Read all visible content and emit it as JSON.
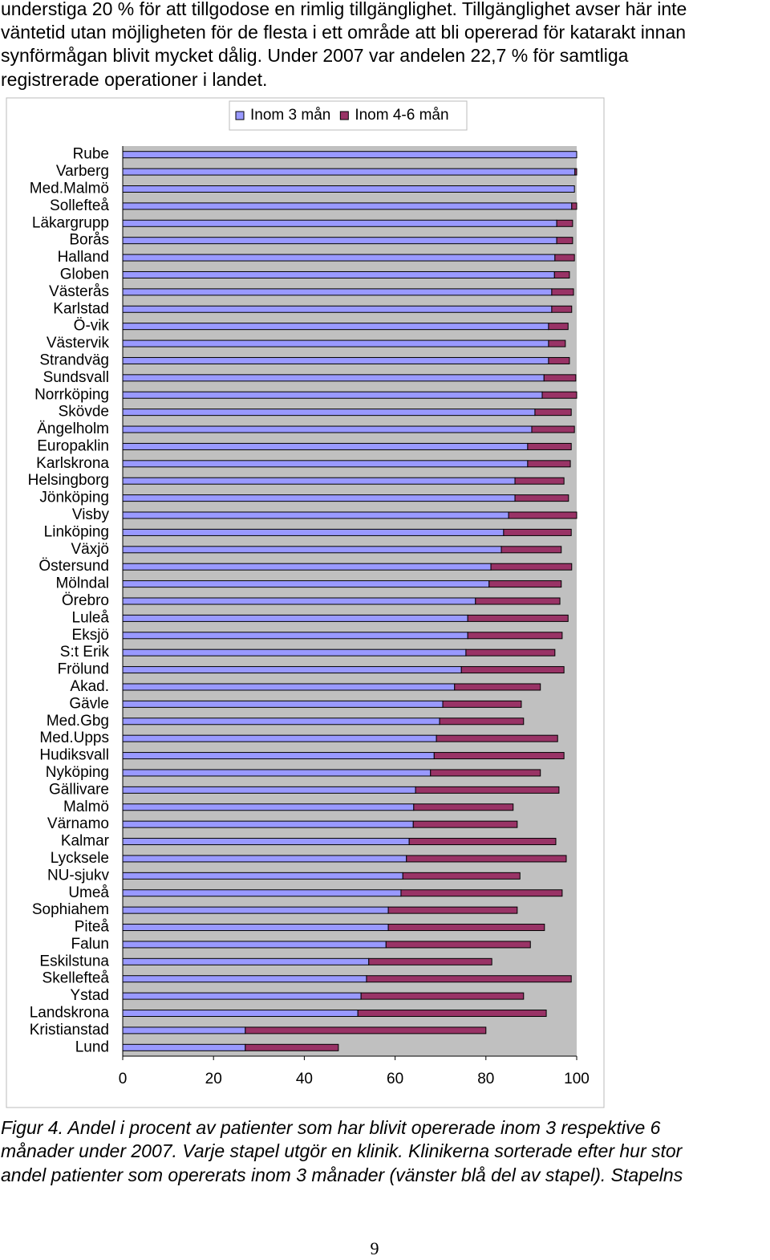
{
  "text": [
    "understiga 20 % för att tillgodose en rimlig tillgänglighet. Tillgänglighet avser här inte",
    "väntetid utan möjligheten för de flesta i ett område att bli opererad för katarakt innan",
    "synförmågan blivit mycket dålig. Under 2007 var andelen 22,7 % för samtliga",
    "registrerade operationer i landet."
  ],
  "chart_data": {
    "type": "stacked-bar-horizontal",
    "categories": [
      "Rube",
      "Varberg",
      "Med.Malmö",
      "Sollefteå",
      "Läkargrupp",
      "Borås",
      "Halland",
      "Globen",
      "Västerås",
      "Karlstad",
      "Ö-vik",
      "Västervik",
      "Strandväg",
      "Sundsvall",
      "Norrköping",
      "Skövde",
      "Ängelholm",
      "Europaklin",
      "Karlskrona",
      "Helsingborg",
      "Jönköping",
      "Visby",
      "Linköping",
      "Växjö",
      "Östersund",
      "Mölndal",
      "Örebro",
      "Luleå",
      "Eksjö",
      "S:t Erik",
      "Frölund",
      "Akad.",
      "Gävle",
      "Med.Gbg",
      "Med.Upps",
      "Hudiksvall",
      "Nyköping",
      "Gällivare",
      "Malmö",
      "Värnamo",
      "Kalmar",
      "Lycksele",
      "NU-sjukv",
      "Umeå",
      "Sophiahem",
      "Piteå",
      "Falun",
      "Eskilstuna",
      "Skellefteå",
      "Ystad",
      "Landskrona",
      "Kristianstad",
      "Lund"
    ],
    "series": [
      {
        "name": "Inom 3 mån",
        "color": "#9999ff",
        "values": [
          100,
          99.6,
          99.5,
          98.9,
          95.6,
          95.6,
          95.2,
          95.1,
          94.5,
          94.5,
          93.8,
          93.8,
          93.8,
          92.8,
          92.4,
          90.8,
          90.1,
          89.2,
          89.2,
          86.4,
          86.4,
          85.0,
          83.9,
          83.4,
          81.1,
          80.7,
          77.7,
          76.0,
          76.0,
          75.6,
          74.6,
          73.1,
          70.5,
          69.8,
          69.1,
          68.6,
          67.8,
          64.5,
          64.1,
          64.0,
          63.1,
          62.5,
          61.7,
          61.3,
          58.5,
          58.5,
          58.0,
          54.2,
          53.7,
          52.5,
          51.8,
          27.0,
          27.0
        ]
      },
      {
        "name": "Inom 4-6 mån",
        "color": "#993366",
        "values": [
          0,
          0.4,
          0,
          1.1,
          3.5,
          3.5,
          4.3,
          3.3,
          4.8,
          4.4,
          4.3,
          3.7,
          4.6,
          7.0,
          7.6,
          8.0,
          9.4,
          9.6,
          9.4,
          10.8,
          11.8,
          15.0,
          14.9,
          13.2,
          17.8,
          15.9,
          18.6,
          22.1,
          20.8,
          19.6,
          22.6,
          18.9,
          17.3,
          18.5,
          26.7,
          28.6,
          24.2,
          31.6,
          21.9,
          22.9,
          32.3,
          35.2,
          25.8,
          35.5,
          28.4,
          34.4,
          31.8,
          27.1,
          45.1,
          35.8,
          41.5,
          53.0,
          20.5
        ]
      }
    ],
    "xlim": [
      0,
      100
    ],
    "xticks": [
      0,
      20,
      40,
      60,
      80,
      100
    ],
    "plot_background": "#c0c0c0",
    "legend": "top"
  },
  "caption": [
    "Figur 4. Andel i procent av patienter som har blivit opererade inom 3 respektive 6",
    "månader under 2007. Varje stapel utgör en klinik. Klinikerna sorterade efter hur stor",
    "andel patienter som opererats inom 3 månader (vänster blå del av stapel). Stapelns"
  ],
  "page_number": "9"
}
